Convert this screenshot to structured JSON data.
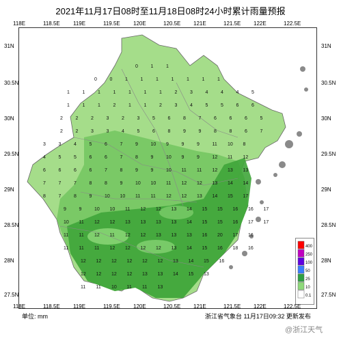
{
  "title": "2021年11月17日08时至11月18日08时24小时累计雨量预报",
  "axes": {
    "top": [
      "118E",
      "118.5E",
      "119E",
      "119.5E",
      "120E",
      "120.5E",
      "121E",
      "121.5E",
      "122E",
      "122.5E"
    ],
    "bottom": [
      "118E",
      "118.5E",
      "119E",
      "119.5E",
      "120E",
      "120.5E",
      "121E",
      "121.5E",
      "122E",
      "122.5E"
    ],
    "left": [
      "31N",
      "30.5N",
      "30N",
      "29.5N",
      "29N",
      "28.5N",
      "28N",
      "27.5N"
    ],
    "right": [
      "31N",
      "30.5N",
      "30N",
      "29.5N",
      "29N",
      "28.5N",
      "28N",
      "27.5N"
    ]
  },
  "legend": {
    "levels": [
      "400",
      "250",
      "100",
      "50",
      "25",
      "10",
      "0.1"
    ],
    "colors": [
      "#ff0000",
      "#c000c0",
      "#6000e0",
      "#3a7dff",
      "#2ea043",
      "#8ed97a",
      "#ffffff"
    ]
  },
  "footer": {
    "unit_label": "单位: mm",
    "issuer": "浙江省气象台  11月17日09:32  更新发布"
  },
  "watermark": "@浙江天气",
  "colors": {
    "light_green": "#a5dd8a",
    "mid_green": "#72c55f",
    "dark_green": "#3fa53a"
  },
  "grid_values": [
    {
      "row": "30.8",
      "vals": [
        "0",
        "1",
        "1"
      ]
    },
    {
      "row": "30.6",
      "vals": [
        "0",
        "0",
        "1",
        "1",
        "1",
        "1",
        "1",
        "1",
        "1"
      ]
    },
    {
      "row": "30.4",
      "vals": [
        "1",
        "1",
        "1",
        "1",
        "1",
        "1",
        "1",
        "2",
        "3",
        "4",
        "4",
        "4",
        "5"
      ]
    },
    {
      "row": "30.2",
      "vals": [
        "1",
        "1",
        "1",
        "2",
        "1",
        "1",
        "2",
        "3",
        "4",
        "5",
        "5",
        "6",
        "6"
      ]
    },
    {
      "row": "30.0",
      "vals": [
        "2",
        "2",
        "2",
        "3",
        "2",
        "3",
        "5",
        "6",
        "8",
        "7",
        "6",
        "6",
        "6",
        "5"
      ]
    },
    {
      "row": "29.8",
      "vals": [
        "2",
        "2",
        "3",
        "3",
        "4",
        "5",
        "6",
        "8",
        "9",
        "9",
        "8",
        "8",
        "6",
        "7"
      ]
    },
    {
      "row": "29.6",
      "vals": [
        "3",
        "3",
        "4",
        "5",
        "6",
        "7",
        "9",
        "10",
        "9",
        "9",
        "9",
        "11",
        "10",
        "8"
      ]
    },
    {
      "row": "29.4",
      "vals": [
        "4",
        "5",
        "5",
        "6",
        "6",
        "7",
        "8",
        "9",
        "10",
        "9",
        "9",
        "12",
        "11",
        "12"
      ]
    },
    {
      "row": "29.2",
      "vals": [
        "6",
        "6",
        "6",
        "6",
        "7",
        "8",
        "9",
        "9",
        "10",
        "11",
        "11",
        "12",
        "13",
        "13"
      ]
    },
    {
      "row": "29.0",
      "vals": [
        "7",
        "7",
        "7",
        "8",
        "8",
        "9",
        "10",
        "10",
        "11",
        "12",
        "12",
        "13",
        "14",
        "14"
      ]
    },
    {
      "row": "28.8",
      "vals": [
        "8",
        "7",
        "8",
        "9",
        "10",
        "10",
        "11",
        "11",
        "12",
        "12",
        "13",
        "14",
        "15",
        "17"
      ]
    },
    {
      "row": "28.6",
      "vals": [
        "9",
        "9",
        "10",
        "10",
        "11",
        "12",
        "12",
        "13",
        "14",
        "15",
        "15",
        "16",
        "16",
        "17"
      ]
    },
    {
      "row": "28.4",
      "vals": [
        "10",
        "11",
        "12",
        "12",
        "13",
        "13",
        "13",
        "13",
        "14",
        "15",
        "15",
        "16",
        "17",
        "17"
      ]
    },
    {
      "row": "28.2",
      "vals": [
        "11",
        "11",
        "12",
        "11",
        "12",
        "12",
        "13",
        "13",
        "13",
        "16",
        "20",
        "17",
        "16"
      ]
    },
    {
      "row": "28.0",
      "vals": [
        "11",
        "11",
        "11",
        "12",
        "12",
        "12",
        "12",
        "13",
        "14",
        "15",
        "16",
        "18",
        "16"
      ]
    },
    {
      "row": "27.8",
      "vals": [
        "12",
        "12",
        "12",
        "12",
        "12",
        "12",
        "13",
        "14",
        "15",
        "16"
      ]
    },
    {
      "row": "27.6",
      "vals": [
        "12",
        "12",
        "12",
        "12",
        "13",
        "13",
        "14",
        "15",
        "13"
      ]
    },
    {
      "row": "27.4",
      "vals": [
        "11",
        "11",
        "10",
        "11",
        "11",
        "13"
      ]
    }
  ]
}
